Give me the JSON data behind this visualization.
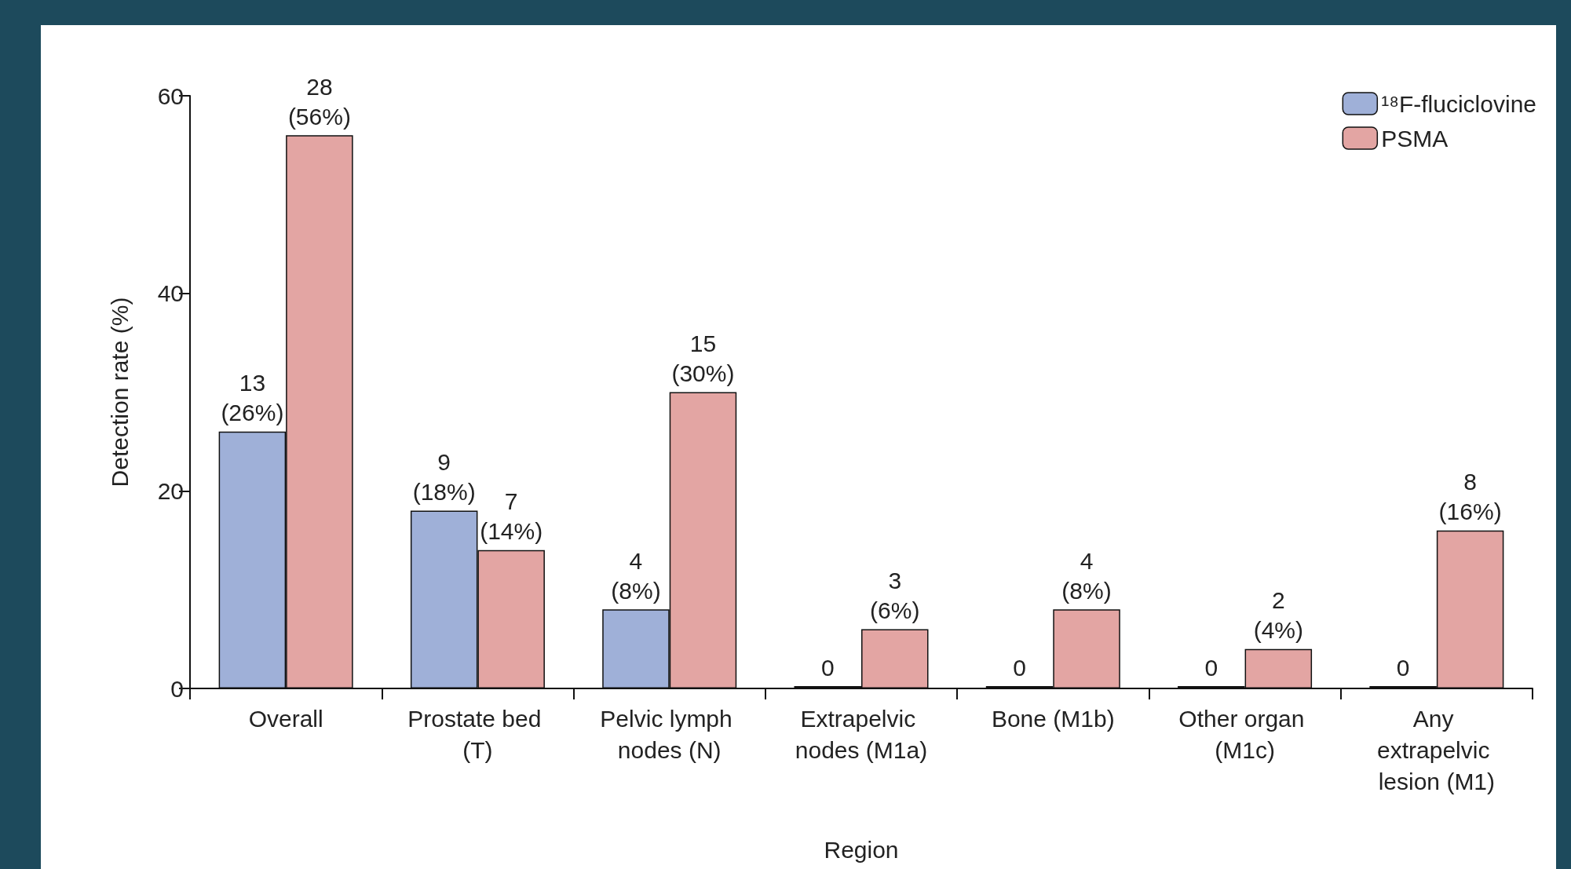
{
  "chart_data": {
    "type": "bar",
    "xlabel": "Region",
    "ylabel": "Detection rate (%)",
    "categories": [
      "Overall",
      "Prostate bed (T)",
      "Pelvic lymph nodes (N)",
      "Extrapelvic nodes (M1a)",
      "Bone (M1b)",
      "Other organ (M1c)",
      "Any extrapelvic lesion (M1)"
    ],
    "series": [
      {
        "name": "¹⁸F-fluciclovine",
        "color": "#9fb0d8",
        "values": [
          26,
          18,
          8,
          0,
          0,
          0,
          0
        ],
        "value_labels": [
          "13 (26%)",
          "9 (18%)",
          "4 (8%)",
          "0",
          "0",
          "0",
          "0"
        ]
      },
      {
        "name": "PSMA",
        "color": "#e3a5a3",
        "values": [
          56,
          14,
          30,
          6,
          8,
          4,
          16
        ],
        "value_labels": [
          "28 (56%)",
          "7 (14%)",
          "15 (30%)",
          "3 (6%)",
          "4 (8%)",
          "2 (4%)",
          "8 (16%)"
        ]
      }
    ],
    "ylim": [
      0,
      60
    ],
    "yticks": [
      0,
      20,
      40,
      60
    ],
    "grid": false,
    "legend": "top right"
  }
}
